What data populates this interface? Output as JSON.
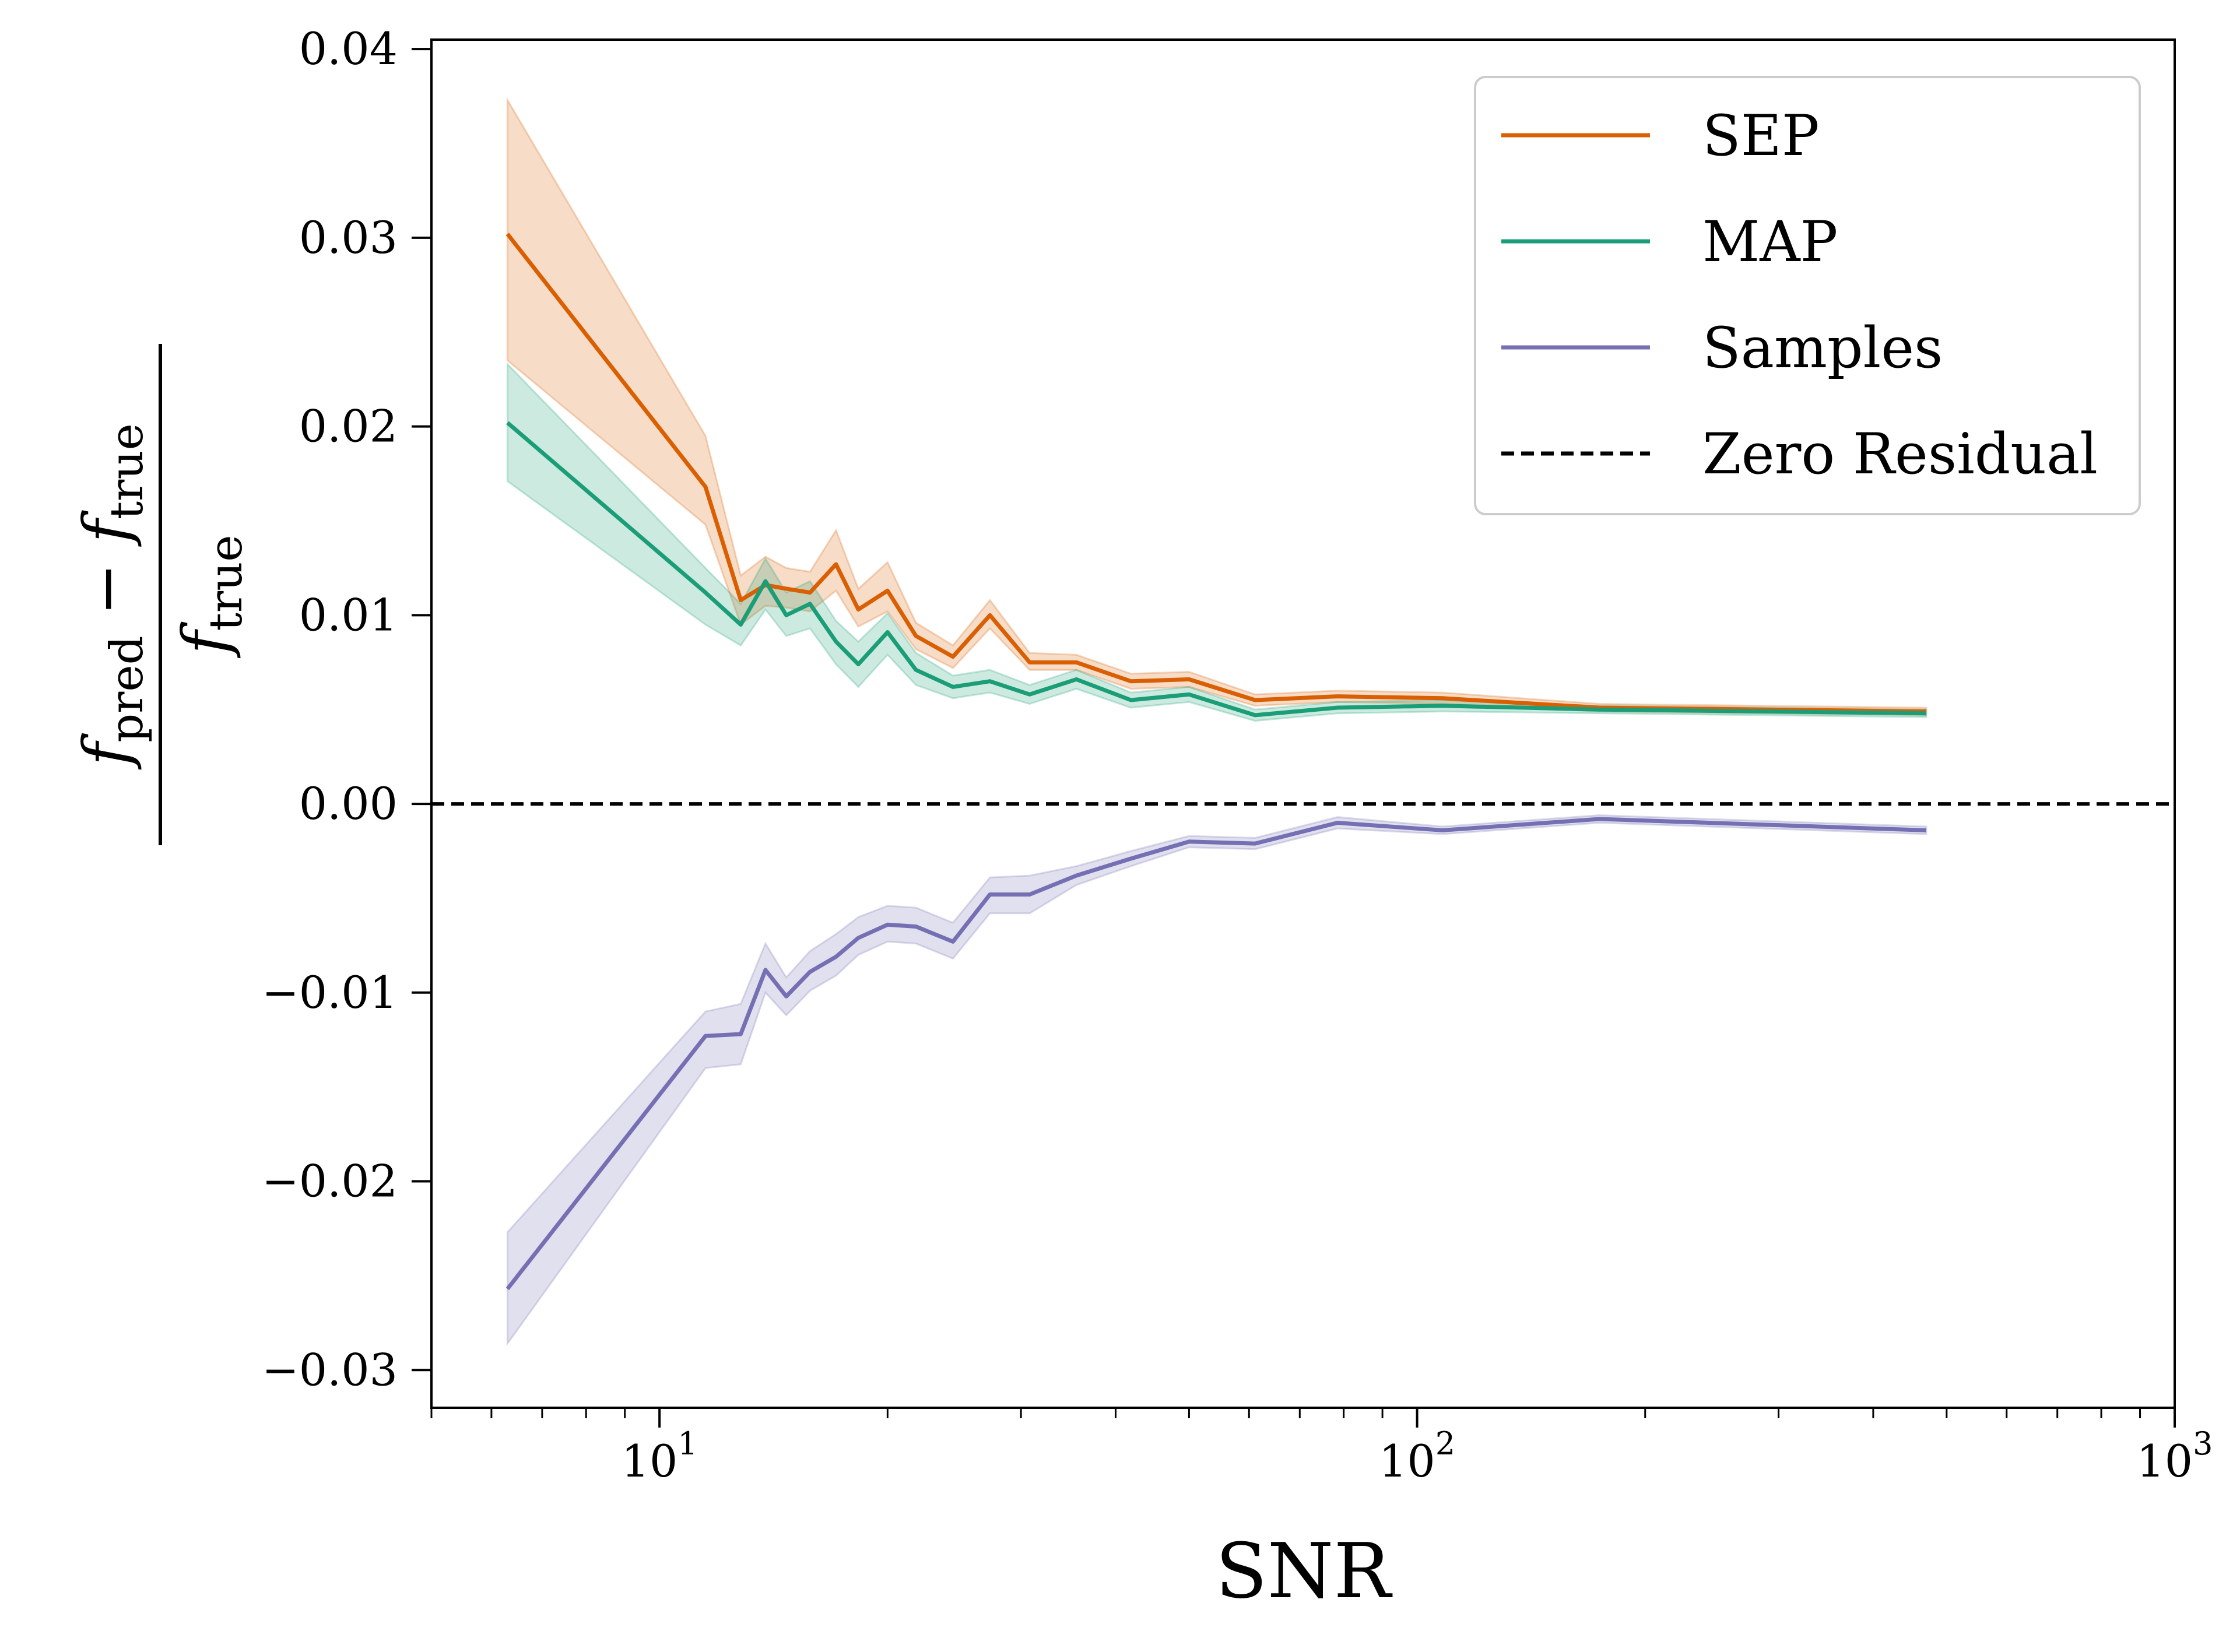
{
  "chart_data": {
    "type": "line",
    "xlabel": "SNR",
    "ylabel": {
      "numerator": "f_pred − f_true",
      "num_part1": "f",
      "num_sub1": "pred",
      "num_minus": " − ",
      "num_part2": "f",
      "num_sub2": "true",
      "den_part": "f",
      "den_sub": "true"
    },
    "x_scale": "log",
    "xlim": [
      5,
      1000
    ],
    "ylim": [
      -0.032,
      0.0405
    ],
    "x_ticks": [
      {
        "value": 10,
        "base": "10",
        "exp": "1"
      },
      {
        "value": 100,
        "base": "10",
        "exp": "2"
      },
      {
        "value": 1000,
        "base": "10",
        "exp": "3"
      }
    ],
    "y_ticks": [
      {
        "value": -0.03,
        "label": "−0.03"
      },
      {
        "value": -0.02,
        "label": "−0.02"
      },
      {
        "value": -0.01,
        "label": "−0.01"
      },
      {
        "value": 0.0,
        "label": "0.00"
      },
      {
        "value": 0.01,
        "label": "0.01"
      },
      {
        "value": 0.02,
        "label": "0.02"
      },
      {
        "value": 0.03,
        "label": "0.03"
      },
      {
        "value": 0.04,
        "label": "0.04"
      }
    ],
    "x": [
      6.3,
      11.5,
      12.8,
      13.8,
      14.7,
      15.8,
      17.1,
      18.3,
      20.0,
      21.8,
      24.4,
      27.3,
      30.8,
      35.5,
      41.9,
      50.0,
      61.1,
      78.5,
      108,
      174,
      470
    ],
    "series": [
      {
        "name": "SEP",
        "color": "#d95f02",
        "values": [
          0.0302,
          0.0168,
          0.0108,
          0.0116,
          0.0114,
          0.0112,
          0.0127,
          0.0103,
          0.0113,
          0.0089,
          0.0078,
          0.01,
          0.0075,
          0.0075,
          0.0065,
          0.0066,
          0.0055,
          0.0057,
          0.0056,
          0.0051,
          0.0049
        ],
        "lower": [
          0.0235,
          0.0148,
          0.0095,
          0.0105,
          0.0104,
          0.0102,
          0.0113,
          0.0094,
          0.0102,
          0.0082,
          0.0072,
          0.0093,
          0.0071,
          0.0071,
          0.0061,
          0.0062,
          0.0052,
          0.0054,
          0.0053,
          0.0049,
          0.0047
        ],
        "upper": [
          0.0373,
          0.0195,
          0.0121,
          0.0131,
          0.0125,
          0.0123,
          0.0145,
          0.0114,
          0.0128,
          0.0096,
          0.0084,
          0.0108,
          0.008,
          0.0079,
          0.0069,
          0.007,
          0.0058,
          0.006,
          0.0059,
          0.0053,
          0.0051
        ]
      },
      {
        "name": "MAP",
        "color": "#1b9e77",
        "values": [
          0.0202,
          0.0112,
          0.0095,
          0.0118,
          0.01,
          0.0106,
          0.0086,
          0.0074,
          0.0091,
          0.0071,
          0.0062,
          0.0065,
          0.0058,
          0.0066,
          0.0055,
          0.0058,
          0.0047,
          0.0051,
          0.0052,
          0.005,
          0.0048
        ],
        "lower": [
          0.0171,
          0.0095,
          0.0084,
          0.0103,
          0.0089,
          0.0093,
          0.0074,
          0.0062,
          0.0079,
          0.0063,
          0.0056,
          0.0059,
          0.0053,
          0.0061,
          0.0051,
          0.0054,
          0.0044,
          0.0048,
          0.0049,
          0.0048,
          0.0046
        ],
        "upper": [
          0.0233,
          0.0125,
          0.0106,
          0.013,
          0.0112,
          0.0118,
          0.0097,
          0.0086,
          0.0101,
          0.008,
          0.0068,
          0.0071,
          0.0063,
          0.0071,
          0.0059,
          0.0062,
          0.005,
          0.0054,
          0.0055,
          0.0052,
          0.005
        ]
      },
      {
        "name": "Samples",
        "color": "#7570b3",
        "values": [
          -0.0257,
          -0.0123,
          -0.0122,
          -0.0088,
          -0.0102,
          -0.0089,
          -0.0081,
          -0.0071,
          -0.0064,
          -0.0065,
          -0.0073,
          -0.0048,
          -0.0048,
          -0.0038,
          -0.0029,
          -0.002,
          -0.0021,
          -0.001,
          -0.0014,
          -0.0008,
          -0.0014
        ],
        "lower": [
          -0.0286,
          -0.014,
          -0.0138,
          -0.01,
          -0.0112,
          -0.0099,
          -0.0091,
          -0.008,
          -0.0073,
          -0.0074,
          -0.0082,
          -0.0058,
          -0.0058,
          -0.0043,
          -0.0033,
          -0.0023,
          -0.0024,
          -0.0013,
          -0.0016,
          -0.001,
          -0.0016
        ],
        "upper": [
          -0.0227,
          -0.011,
          -0.0106,
          -0.0074,
          -0.0092,
          -0.0078,
          -0.0069,
          -0.006,
          -0.0054,
          -0.0055,
          -0.0063,
          -0.0039,
          -0.0038,
          -0.0033,
          -0.0025,
          -0.0017,
          -0.0018,
          -0.0007,
          -0.0012,
          -0.0006,
          -0.0012
        ]
      }
    ],
    "reference_line": {
      "name": "Zero Residual",
      "y": 0.0,
      "style": "dashed",
      "color": "#000000"
    },
    "legend": {
      "position": "top-right",
      "entries": [
        {
          "label": "SEP",
          "color": "#d95f02",
          "style": "solid"
        },
        {
          "label": "MAP",
          "color": "#1b9e77",
          "style": "solid"
        },
        {
          "label": "Samples",
          "color": "#7570b3",
          "style": "solid"
        },
        {
          "label": "Zero Residual",
          "color": "#000000",
          "style": "dashed"
        }
      ]
    },
    "grid": false
  }
}
